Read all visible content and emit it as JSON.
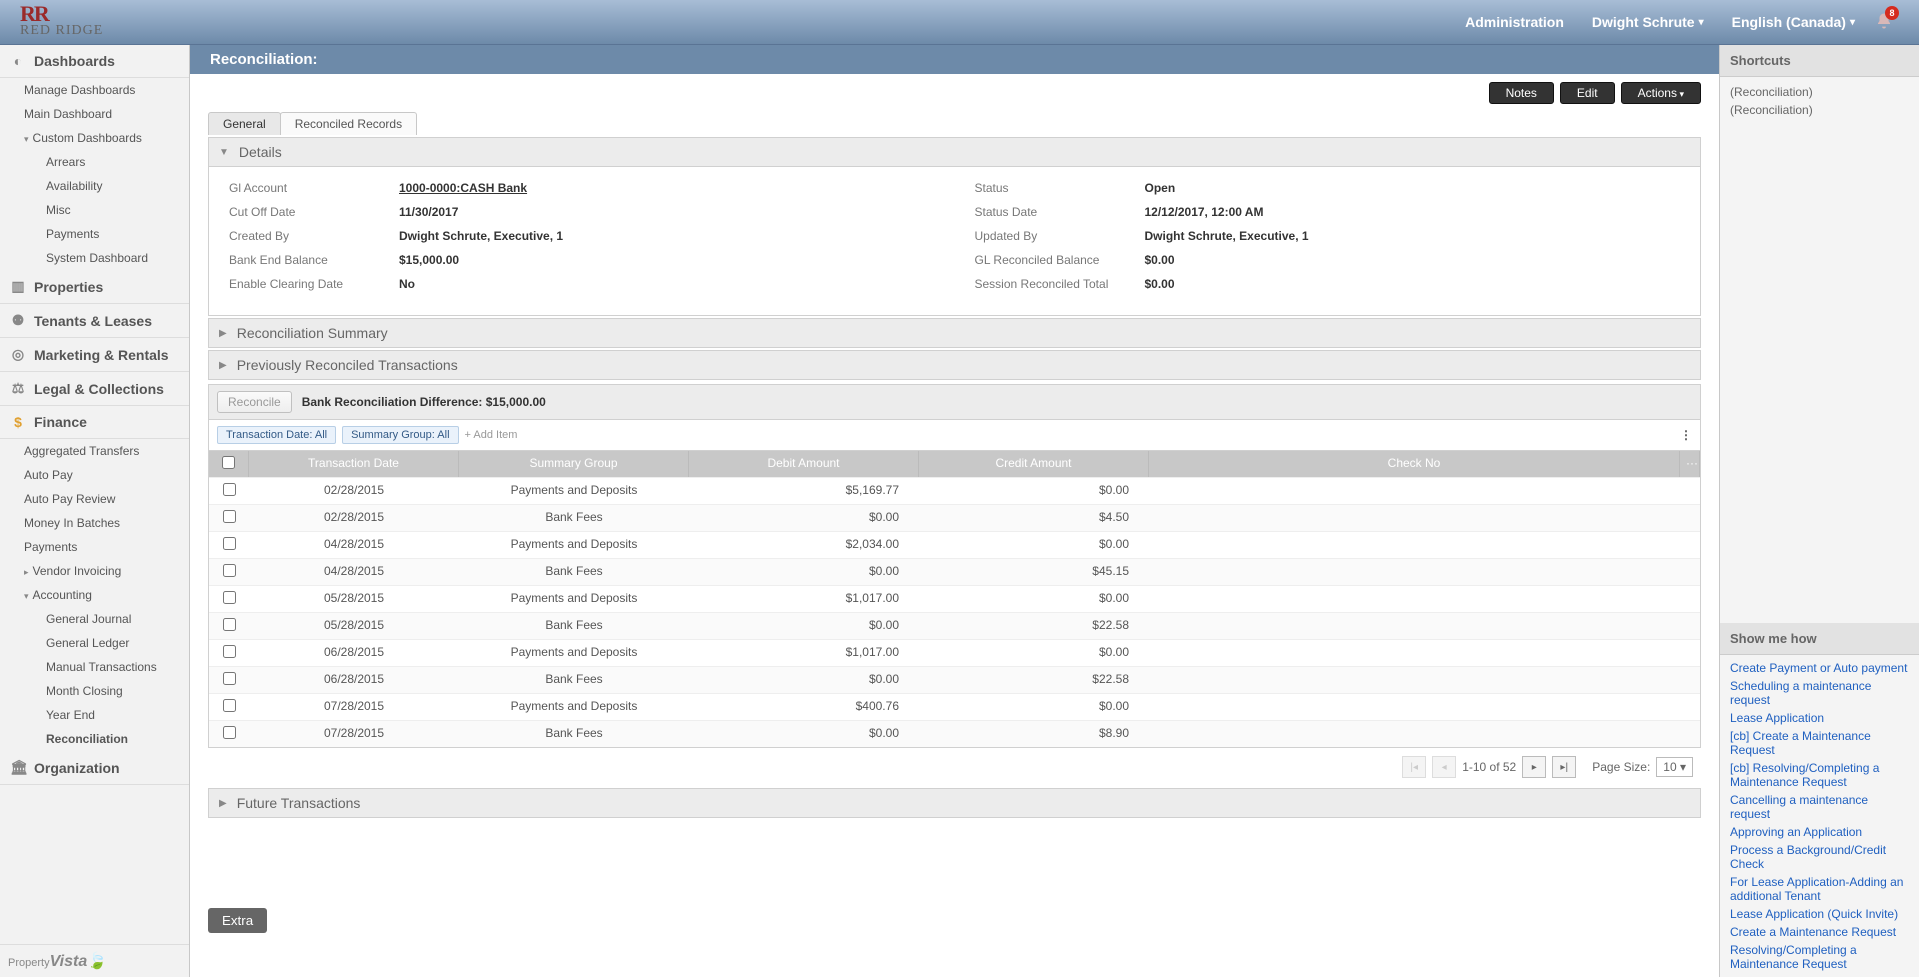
{
  "topbar": {
    "admin": "Administration",
    "user": "Dwight Schrute",
    "lang": "English (Canada)",
    "notif_count": "8"
  },
  "logo": {
    "rr": "RR",
    "text": "RED RIDGE"
  },
  "sidebar": {
    "dashboards": "Dashboards",
    "manage_dashboards": "Manage Dashboards",
    "main_dashboard": "Main Dashboard",
    "custom_dashboards": "Custom Dashboards",
    "arrears": "Arrears",
    "availability": "Availability",
    "misc": "Misc",
    "payments": "Payments",
    "system_dashboard": "System Dashboard",
    "properties": "Properties",
    "tenants": "Tenants & Leases",
    "marketing": "Marketing & Rentals",
    "legal": "Legal & Collections",
    "finance": "Finance",
    "aggregated_transfers": "Aggregated Transfers",
    "auto_pay": "Auto Pay",
    "auto_pay_review": "Auto Pay Review",
    "money_in_batches": "Money In Batches",
    "fin_payments": "Payments",
    "vendor_invoicing": "Vendor Invoicing",
    "accounting": "Accounting",
    "general_journal": "General Journal",
    "general_ledger": "General Ledger",
    "manual_transactions": "Manual Transactions",
    "month_closing": "Month Closing",
    "year_end": "Year End",
    "reconciliation": "Reconciliation",
    "organization": "Organization",
    "property_vista": "PropertyVista"
  },
  "page": {
    "title": "Reconciliation:",
    "btn_notes": "Notes",
    "btn_edit": "Edit",
    "btn_actions": "Actions",
    "tab_general": "General",
    "tab_reconciled": "Reconciled Records",
    "details_title": "Details",
    "summary_title": "Reconciliation Summary",
    "prev_title": "Previously Reconciled Transactions",
    "future_title": "Future Transactions",
    "extra": "Extra"
  },
  "details": {
    "gl_account_l": "Gl Account",
    "gl_account_v": "1000-0000:CASH Bank",
    "cutoff_l": "Cut Off Date",
    "cutoff_v": "11/30/2017",
    "created_by_l": "Created By",
    "created_by_v": "Dwight Schrute, Executive, 1",
    "bank_end_l": "Bank End Balance",
    "bank_end_v": "$15,000.00",
    "clearing_l": "Enable Clearing Date",
    "clearing_v": "No",
    "status_l": "Status",
    "status_v": "Open",
    "status_date_l": "Status Date",
    "status_date_v": "12/12/2017, 12:00 AM",
    "updated_by_l": "Updated By",
    "updated_by_v": "Dwight Schrute, Executive, 1",
    "gl_recon_l": "GL Reconciled Balance",
    "gl_recon_v": "$0.00",
    "session_l": "Session Reconciled Total",
    "session_v": "$0.00"
  },
  "reconcile": {
    "btn": "Reconcile",
    "diff": "Bank Reconciliation Difference: $15,000.00",
    "chip_date": "Transaction Date: All",
    "chip_group": "Summary Group: All",
    "add_item": "+ Add Item"
  },
  "grid": {
    "h_td": "Transaction Date",
    "h_sg": "Summary Group",
    "h_da": "Debit Amount",
    "h_ca": "Credit Amount",
    "h_cn": "Check No",
    "rows": [
      {
        "td": "02/28/2015",
        "sg": "Payments and Deposits",
        "da": "$5,169.77",
        "ca": "$0.00"
      },
      {
        "td": "02/28/2015",
        "sg": "Bank Fees",
        "da": "$0.00",
        "ca": "$4.50"
      },
      {
        "td": "04/28/2015",
        "sg": "Payments and Deposits",
        "da": "$2,034.00",
        "ca": "$0.00"
      },
      {
        "td": "04/28/2015",
        "sg": "Bank Fees",
        "da": "$0.00",
        "ca": "$45.15"
      },
      {
        "td": "05/28/2015",
        "sg": "Payments and Deposits",
        "da": "$1,017.00",
        "ca": "$0.00"
      },
      {
        "td": "05/28/2015",
        "sg": "Bank Fees",
        "da": "$0.00",
        "ca": "$22.58"
      },
      {
        "td": "06/28/2015",
        "sg": "Payments and Deposits",
        "da": "$1,017.00",
        "ca": "$0.00"
      },
      {
        "td": "06/28/2015",
        "sg": "Bank Fees",
        "da": "$0.00",
        "ca": "$22.58"
      },
      {
        "td": "07/28/2015",
        "sg": "Payments and Deposits",
        "da": "$400.76",
        "ca": "$0.00"
      },
      {
        "td": "07/28/2015",
        "sg": "Bank Fees",
        "da": "$0.00",
        "ca": "$8.90"
      }
    ]
  },
  "pager": {
    "range": "1-10 of 52",
    "size_label": "Page Size:",
    "size": "10"
  },
  "shortcuts": {
    "title": "Shortcuts",
    "items": [
      "(Reconciliation)",
      "(Reconciliation)"
    ]
  },
  "help": {
    "title": "Show me how",
    "links": [
      "Create Payment or Auto payment",
      "Scheduling a maintenance request",
      "Lease Application",
      "[cb] Create a Maintenance Request",
      "[cb] Resolving/Completing a Maintenance Request",
      "Cancelling a maintenance request",
      "Approving an Application",
      "Process a Background/Credit Check",
      "For Lease Application-Adding an additional Tenant",
      "Lease Application (Quick Invite)",
      "Create a Maintenance Request",
      "Resolving/Completing a Maintenance Request"
    ]
  }
}
